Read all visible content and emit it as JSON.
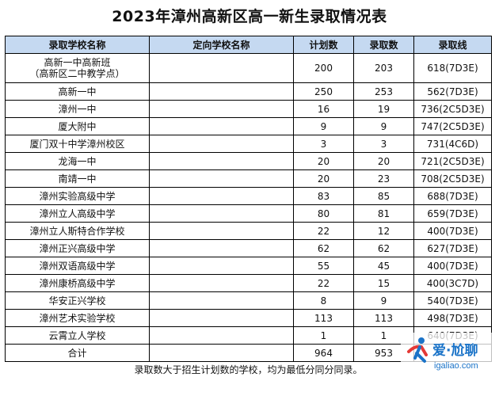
{
  "title": "2023年漳州高新区高一新生录取情况表",
  "headers": [
    "录取学校名称",
    "定向学校名称",
    "计划数",
    "录取数",
    "录取线"
  ],
  "rows": [
    {
      "school": "高新一中高新班",
      "school_sub": "（高新区二中教学点）",
      "directed": "",
      "plan": "200",
      "admitted": "203",
      "line": "618(7D3E)"
    },
    {
      "school": "高新一中",
      "directed": "",
      "plan": "250",
      "admitted": "253",
      "line": "562(7D3E)"
    },
    {
      "school": "漳州一中",
      "directed": "",
      "plan": "16",
      "admitted": "19",
      "line": "736(2C5D3E)"
    },
    {
      "school": "厦大附中",
      "directed": "",
      "plan": "9",
      "admitted": "9",
      "line": "747(2C5D3E)"
    },
    {
      "school": "厦门双十中学漳州校区",
      "directed": "",
      "plan": "3",
      "admitted": "3",
      "line": "731(4C6D)"
    },
    {
      "school": "龙海一中",
      "directed": "",
      "plan": "20",
      "admitted": "20",
      "line": "721(2C5D3E)"
    },
    {
      "school": "南靖一中",
      "directed": "",
      "plan": "20",
      "admitted": "23",
      "line": "708(2C5D3E)"
    },
    {
      "school": "漳州实验高级中学",
      "directed": "",
      "plan": "83",
      "admitted": "85",
      "line": "688(7D3E)"
    },
    {
      "school": "漳州立人高级中学",
      "directed": "",
      "plan": "80",
      "admitted": "81",
      "line": "659(7D3E)"
    },
    {
      "school": "漳州立人斯特合作学校",
      "directed": "",
      "plan": "22",
      "admitted": "12",
      "line": "400(7D3E)"
    },
    {
      "school": "漳州正兴高级中学",
      "directed": "",
      "plan": "62",
      "admitted": "62",
      "line": "627(7D3E)"
    },
    {
      "school": "漳州双语高级中学",
      "directed": "",
      "plan": "55",
      "admitted": "45",
      "line": "400(7D3E)"
    },
    {
      "school": "漳州康桥高级中学",
      "directed": "",
      "plan": "22",
      "admitted": "15",
      "line": "400(3C7D)"
    },
    {
      "school": "华安正兴学校",
      "directed": "",
      "plan": "8",
      "admitted": "9",
      "line": "540(7D3E)"
    },
    {
      "school": "漳州艺术实验学校",
      "directed": "",
      "plan": "113",
      "admitted": "113",
      "line": "498(7D3E)"
    },
    {
      "school": "云霄立人学校",
      "directed": "",
      "plan": "1",
      "admitted": "1",
      "line": "640(7D3E)"
    },
    {
      "school": "合计",
      "directed": "",
      "plan": "964",
      "admitted": "953",
      "line": ""
    }
  ],
  "note": "录取数大于招生计划数的学校，均为最低分同分同录。",
  "watermark": {
    "name": "爱·尬聊",
    "url": "igaliao.com"
  },
  "colors": {
    "header_bg": "#c5d9f1",
    "watermark": "#1a73c8"
  }
}
